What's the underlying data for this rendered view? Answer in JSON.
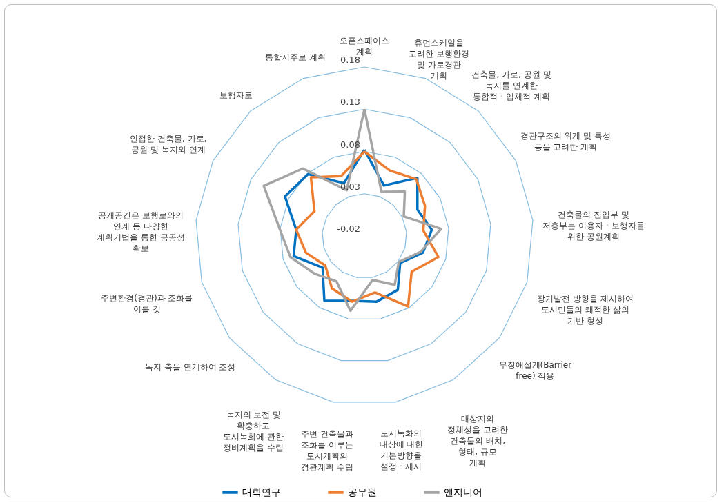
{
  "chart_data": {
    "type": "radar",
    "categories": [
      "오픈스페이스 계획",
      "휴먼스케일을 고려한 보행환경 및 가로경관 계획",
      "건축물, 가로, 공원 및 녹지를 연계한 통합적ㆍ입체적 계획",
      "경관구조의 위계 및 특성 등을 고려한 계획",
      "건축물의 진입부 및 저층부는 이용자ㆍ보행자를 위한 공원계획",
      "장기발전 방향을 제시하여 도시민들의 쾌적한 삶의 기반 형성",
      "무장애설계(Barrier free) 적용",
      "대상지의 정체성을 고려한 건축물의 배치, 형태, 규모 계획",
      "도시녹화의 대상에 대한 기본방향을 설정ㆍ제시",
      "주변 건축물과 조화를 이루는 도시계획의 경관계획 수립",
      "녹지의 보전 및 확충하고 도시녹화에 관한 정비계획을 수립",
      "녹지 축을 연계하여 조성",
      "주변환경(경관)과 조화를 이룰 것",
      "공개공간은 보행로와의 연계 등 다양한 계획기법을 통한 공공성 확보",
      "인접한 건축물, 가로, 공원 및 녹지와 연계",
      "보행자로",
      "통합지주로 계획"
    ],
    "series": [
      {
        "name": "대학연구",
        "color": "#0070c0",
        "values": [
          0.082,
          0.044,
          0.073,
          0.05,
          0.06,
          0.052,
          0.033,
          0.055,
          0.059,
          0.058,
          0.07,
          0.042,
          0.067,
          0.061,
          0.085,
          0.079,
          0.047
        ]
      },
      {
        "name": "공무원",
        "color": "#ed7d31",
        "values": [
          0.08,
          0.063,
          0.071,
          0.06,
          0.05,
          0.071,
          0.05,
          0.078,
          0.048,
          0.059,
          0.053,
          0.038,
          0.052,
          0.061,
          0.046,
          0.074,
          0.056
        ]
      },
      {
        "name": "엔지니어",
        "color": "#a5a5a5",
        "values": [
          0.13,
          0.036,
          0.051,
          0.032,
          0.071,
          0.049,
          0.031,
          0.048,
          0.033,
          0.07,
          0.043,
          0.054,
          0.071,
          0.081,
          0.113,
          0.088,
          0.038
        ]
      }
    ],
    "ylim": [
      -0.02,
      0.18
    ],
    "yticks": [
      -0.02,
      0.03,
      0.08,
      0.13,
      0.18
    ],
    "grid": true,
    "legend": "bottom",
    "marker": "none",
    "line_style": "solid"
  }
}
